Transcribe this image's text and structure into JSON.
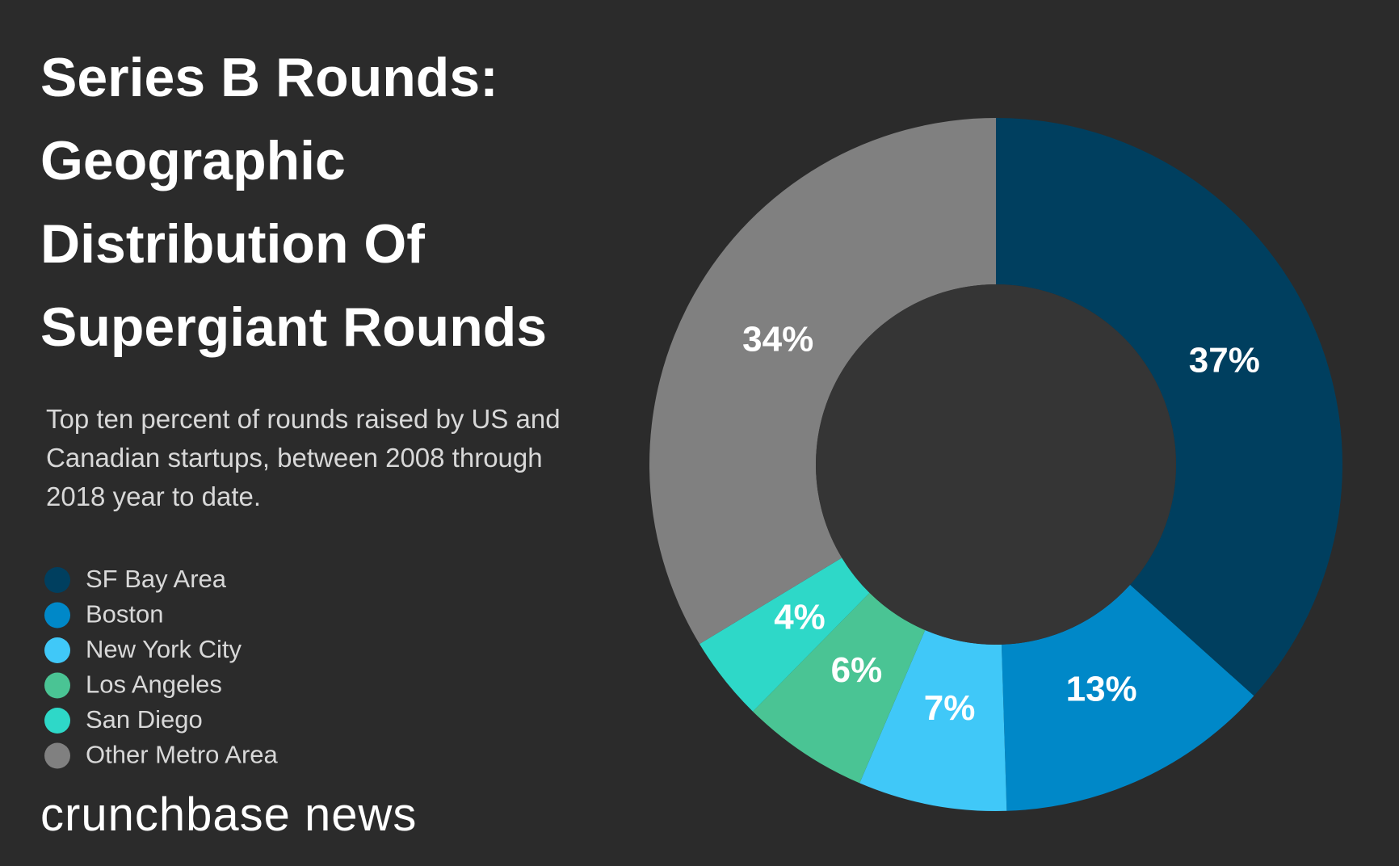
{
  "chart_data": {
    "type": "pie",
    "title": "Series B Rounds: Geographic Distribution Of Supergiant Rounds",
    "subtitle": "Top ten percent of rounds raised by US and Canadian startups, between 2008 through 2018 year to date.",
    "categories": [
      "SF Bay Area",
      "Boston",
      "New York City",
      "Los Angeles",
      "San Diego",
      "Other Metro Area"
    ],
    "values": [
      37,
      13,
      7,
      6,
      4,
      34
    ],
    "value_labels": [
      "37%",
      "13%",
      "7%",
      "6%",
      "4%",
      "34%"
    ],
    "colors": [
      "#003f5f",
      "#0088c8",
      "#40c8f8",
      "#4ac494",
      "#2ed8c8",
      "#808080"
    ],
    "brand": "crunchbase news"
  }
}
